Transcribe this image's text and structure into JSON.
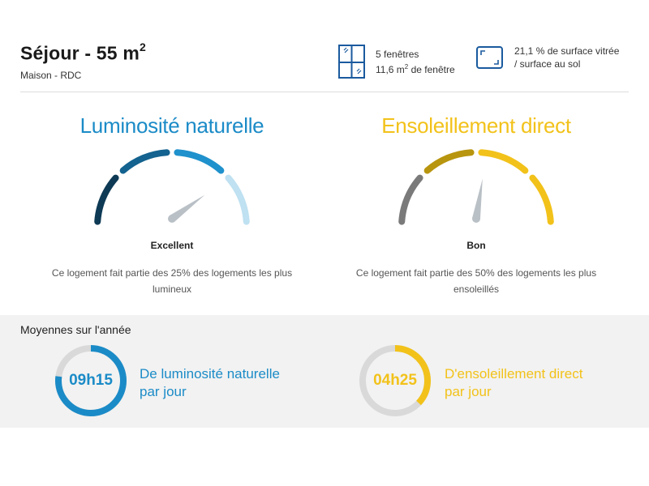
{
  "header": {
    "title": "Séjour - 55 m",
    "title_sup": "2",
    "subtitle": "Maison - RDC",
    "windows": {
      "icon": "window-icon",
      "line1": "5 fenêtres",
      "line2_prefix": "11,6 m",
      "line2_sup": "2",
      "line2_suffix": " de fenêtre"
    },
    "glazing": {
      "icon": "floor-area-icon",
      "line1": "21,1 % de surface vitrée",
      "line2": "/ surface au sol"
    }
  },
  "gauges": {
    "light": {
      "title": "Luminosité naturelle",
      "rating": "Excellent",
      "description_line1": "Ce logement fait partie des 25% des logements les plus",
      "description_line2": "lumineux",
      "level": 0.8,
      "colors": [
        "#0e3a55",
        "#13628f",
        "#1f91cc",
        "#bfe1f1"
      ]
    },
    "sun": {
      "title": "Ensoleillement direct",
      "rating": "Bon",
      "description_line1": "Ce logement fait partie des 50% des logements les plus",
      "description_line2": "ensoleillés",
      "level": 0.55,
      "colors": [
        "#7a7a7a",
        "#b8950e",
        "#f2c21a",
        "#f2c21a"
      ]
    }
  },
  "averages": {
    "title": "Moyennes sur l'année",
    "light": {
      "value": "09h15",
      "label_line1": "De luminosité naturelle",
      "label_line2": "par jour",
      "fraction": 0.77,
      "color": "#1b8bc7"
    },
    "sun": {
      "value": "04h25",
      "label_line1": "D'ensoleillement direct",
      "label_line2": "par jour",
      "fraction": 0.37,
      "color": "#f2c21a"
    }
  }
}
